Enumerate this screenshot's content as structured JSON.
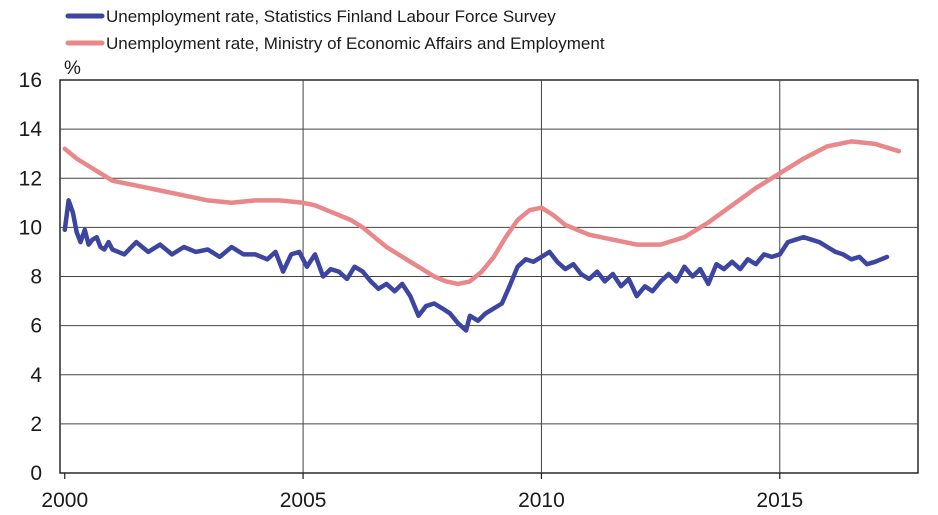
{
  "chart_data": {
    "type": "line",
    "unit_label": "%",
    "ylim": [
      0,
      16
    ],
    "y_ticks": [
      "0",
      "2",
      "4",
      "6",
      "8",
      "10",
      "12",
      "14",
      "16"
    ],
    "xlim": [
      2000,
      2017.5
    ],
    "x_ticks": [
      "2000",
      "2005",
      "2010",
      "2015"
    ],
    "vertical_gridlines_at": [
      2005,
      2010,
      2015
    ],
    "legend_position": "top-left",
    "series": [
      {
        "name": "Unemployment rate, Statistics Finland Labour Force Survey",
        "color": "#3c46a0",
        "points": [
          [
            2000.0,
            9.9
          ],
          [
            2000.08,
            11.1
          ],
          [
            2000.17,
            10.6
          ],
          [
            2000.25,
            9.8
          ],
          [
            2000.33,
            9.4
          ],
          [
            2000.42,
            9.9
          ],
          [
            2000.5,
            9.3
          ],
          [
            2000.58,
            9.5
          ],
          [
            2000.67,
            9.6
          ],
          [
            2000.75,
            9.2
          ],
          [
            2000.83,
            9.1
          ],
          [
            2000.92,
            9.4
          ],
          [
            2001.0,
            9.1
          ],
          [
            2001.25,
            8.9
          ],
          [
            2001.5,
            9.4
          ],
          [
            2001.75,
            9.0
          ],
          [
            2002.0,
            9.3
          ],
          [
            2002.25,
            8.9
          ],
          [
            2002.5,
            9.2
          ],
          [
            2002.75,
            9.0
          ],
          [
            2003.0,
            9.1
          ],
          [
            2003.25,
            8.8
          ],
          [
            2003.5,
            9.2
          ],
          [
            2003.75,
            8.9
          ],
          [
            2004.0,
            8.9
          ],
          [
            2004.25,
            8.7
          ],
          [
            2004.42,
            9.0
          ],
          [
            2004.58,
            8.2
          ],
          [
            2004.75,
            8.9
          ],
          [
            2004.92,
            9.0
          ],
          [
            2005.08,
            8.4
          ],
          [
            2005.25,
            8.9
          ],
          [
            2005.42,
            8.0
          ],
          [
            2005.58,
            8.3
          ],
          [
            2005.75,
            8.2
          ],
          [
            2005.92,
            7.9
          ],
          [
            2006.08,
            8.4
          ],
          [
            2006.25,
            8.2
          ],
          [
            2006.42,
            7.8
          ],
          [
            2006.58,
            7.5
          ],
          [
            2006.75,
            7.7
          ],
          [
            2006.92,
            7.4
          ],
          [
            2007.08,
            7.7
          ],
          [
            2007.25,
            7.2
          ],
          [
            2007.42,
            6.4
          ],
          [
            2007.58,
            6.8
          ],
          [
            2007.75,
            6.9
          ],
          [
            2007.92,
            6.7
          ],
          [
            2008.08,
            6.5
          ],
          [
            2008.25,
            6.1
          ],
          [
            2008.42,
            5.8
          ],
          [
            2008.5,
            6.4
          ],
          [
            2008.67,
            6.2
          ],
          [
            2008.83,
            6.5
          ],
          [
            2009.0,
            6.7
          ],
          [
            2009.17,
            6.9
          ],
          [
            2009.33,
            7.6
          ],
          [
            2009.5,
            8.4
          ],
          [
            2009.67,
            8.7
          ],
          [
            2009.83,
            8.6
          ],
          [
            2010.0,
            8.8
          ],
          [
            2010.17,
            9.0
          ],
          [
            2010.33,
            8.6
          ],
          [
            2010.5,
            8.3
          ],
          [
            2010.67,
            8.5
          ],
          [
            2010.83,
            8.1
          ],
          [
            2011.0,
            7.9
          ],
          [
            2011.17,
            8.2
          ],
          [
            2011.33,
            7.8
          ],
          [
            2011.5,
            8.1
          ],
          [
            2011.67,
            7.6
          ],
          [
            2011.83,
            7.9
          ],
          [
            2012.0,
            7.2
          ],
          [
            2012.17,
            7.6
          ],
          [
            2012.33,
            7.4
          ],
          [
            2012.5,
            7.8
          ],
          [
            2012.67,
            8.1
          ],
          [
            2012.83,
            7.8
          ],
          [
            2013.0,
            8.4
          ],
          [
            2013.17,
            8.0
          ],
          [
            2013.33,
            8.3
          ],
          [
            2013.5,
            7.7
          ],
          [
            2013.67,
            8.5
          ],
          [
            2013.83,
            8.3
          ],
          [
            2014.0,
            8.6
          ],
          [
            2014.17,
            8.3
          ],
          [
            2014.33,
            8.7
          ],
          [
            2014.5,
            8.5
          ],
          [
            2014.67,
            8.9
          ],
          [
            2014.83,
            8.8
          ],
          [
            2015.0,
            8.9
          ],
          [
            2015.17,
            9.4
          ],
          [
            2015.33,
            9.5
          ],
          [
            2015.5,
            9.6
          ],
          [
            2015.67,
            9.5
          ],
          [
            2015.83,
            9.4
          ],
          [
            2016.0,
            9.2
          ],
          [
            2016.17,
            9.0
          ],
          [
            2016.33,
            8.9
          ],
          [
            2016.5,
            8.7
          ],
          [
            2016.67,
            8.8
          ],
          [
            2016.83,
            8.5
          ],
          [
            2017.0,
            8.6
          ],
          [
            2017.25,
            8.8
          ]
        ]
      },
      {
        "name": "Unemployment rate, Ministry of Economic Affairs and Employment",
        "color": "#e8888a",
        "points": [
          [
            2000.0,
            13.2
          ],
          [
            2000.25,
            12.8
          ],
          [
            2000.5,
            12.5
          ],
          [
            2000.75,
            12.2
          ],
          [
            2001.0,
            11.9
          ],
          [
            2001.5,
            11.7
          ],
          [
            2002.0,
            11.5
          ],
          [
            2002.5,
            11.3
          ],
          [
            2003.0,
            11.1
          ],
          [
            2003.5,
            11.0
          ],
          [
            2004.0,
            11.1
          ],
          [
            2004.5,
            11.1
          ],
          [
            2005.0,
            11.0
          ],
          [
            2005.25,
            10.9
          ],
          [
            2005.5,
            10.7
          ],
          [
            2005.75,
            10.5
          ],
          [
            2006.0,
            10.3
          ],
          [
            2006.25,
            10.0
          ],
          [
            2006.5,
            9.6
          ],
          [
            2006.75,
            9.2
          ],
          [
            2007.0,
            8.9
          ],
          [
            2007.25,
            8.6
          ],
          [
            2007.5,
            8.3
          ],
          [
            2007.75,
            8.0
          ],
          [
            2008.0,
            7.8
          ],
          [
            2008.25,
            7.7
          ],
          [
            2008.5,
            7.8
          ],
          [
            2008.75,
            8.2
          ],
          [
            2009.0,
            8.8
          ],
          [
            2009.25,
            9.6
          ],
          [
            2009.5,
            10.3
          ],
          [
            2009.75,
            10.7
          ],
          [
            2010.0,
            10.8
          ],
          [
            2010.25,
            10.5
          ],
          [
            2010.5,
            10.1
          ],
          [
            2010.75,
            9.9
          ],
          [
            2011.0,
            9.7
          ],
          [
            2011.5,
            9.5
          ],
          [
            2012.0,
            9.3
          ],
          [
            2012.5,
            9.3
          ],
          [
            2013.0,
            9.6
          ],
          [
            2013.5,
            10.2
          ],
          [
            2014.0,
            10.9
          ],
          [
            2014.5,
            11.6
          ],
          [
            2015.0,
            12.2
          ],
          [
            2015.5,
            12.8
          ],
          [
            2016.0,
            13.3
          ],
          [
            2016.5,
            13.5
          ],
          [
            2017.0,
            13.4
          ],
          [
            2017.5,
            13.1
          ]
        ]
      }
    ]
  }
}
